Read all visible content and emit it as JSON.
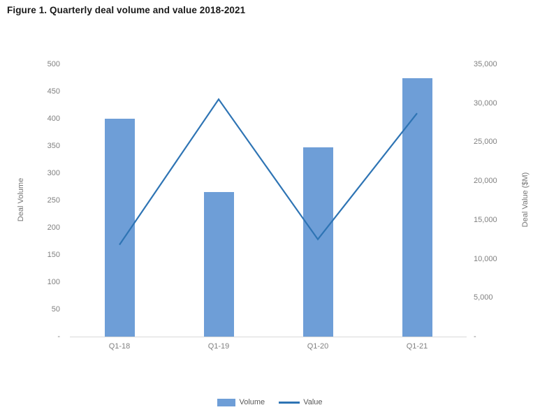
{
  "figure_title": "Figure 1. Quarterly deal volume and value 2018-2021",
  "chart_data": {
    "type": "combo-bar-line",
    "categories": [
      "Q1-18",
      "Q1-19",
      "Q1-20",
      "Q1-21"
    ],
    "series": [
      {
        "name": "Volume",
        "type": "bar",
        "axis": "left",
        "values": [
          400,
          265,
          347,
          475
        ],
        "color": "#6E9ED7"
      },
      {
        "name": "Value",
        "type": "line",
        "axis": "right",
        "values": [
          11800,
          30500,
          12500,
          28700
        ],
        "color": "#2E74B4"
      }
    ],
    "left_axis": {
      "title": "Deal Volume",
      "min": 0,
      "max": 500,
      "tick_step": 50,
      "tick_labels_top_to_bottom": [
        "500",
        "450",
        "400",
        "350",
        "300",
        "250",
        "200",
        "150",
        "100",
        "50",
        "-"
      ]
    },
    "right_axis": {
      "title": "Deal Value ($M)",
      "min": 0,
      "max": 35000,
      "tick_step": 5000,
      "tick_labels_top_to_bottom": [
        "35,000",
        "30,000",
        "25,000",
        "20,000",
        "15,000",
        "10,000",
        "5,000",
        "-"
      ]
    },
    "legend": {
      "position": "bottom",
      "entries": [
        "Volume",
        "Value"
      ]
    },
    "gridlines": false
  },
  "colors": {
    "bar": "#6E9ED7",
    "line": "#2E74B4",
    "tick_text": "#808080",
    "axis_title_text": "#757575",
    "legend_text": "#595959",
    "axis_line": "#D9D9D9",
    "title_text": "#1A1A1A",
    "background": "#FFFFFF"
  }
}
